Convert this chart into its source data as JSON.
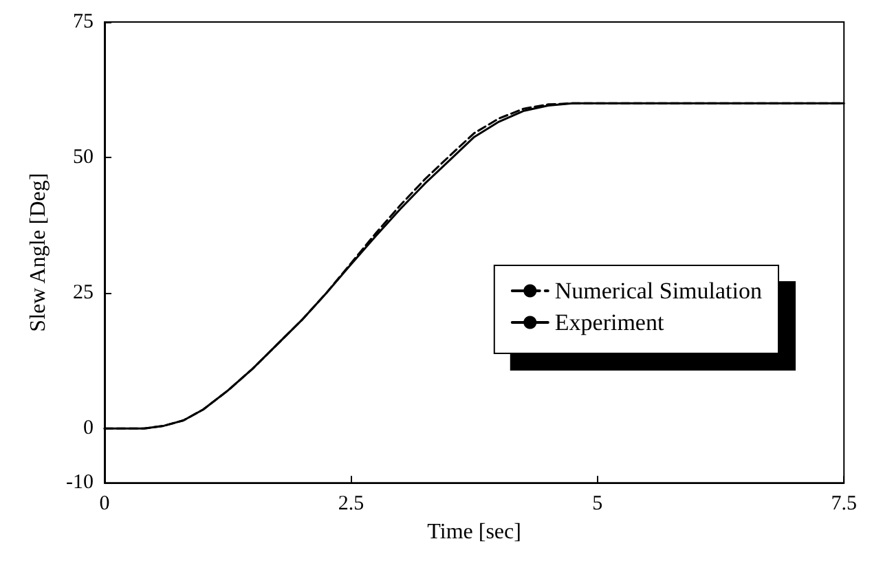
{
  "chart_data": {
    "type": "line",
    "xlabel": "Time [sec]",
    "ylabel": "Slew Angle [Deg]",
    "xlim": [
      0,
      7.5
    ],
    "xticks": [
      0,
      2.5,
      5,
      7.5
    ],
    "ylim": [
      -10,
      75
    ],
    "yticks": [
      -10,
      0,
      25,
      50,
      75
    ],
    "grid": false,
    "legend": "right",
    "marker": "none",
    "series": [
      {
        "name": "Numerical Simulation",
        "color": "#000000",
        "line_style": "dashed",
        "x": [
          0,
          0.4,
          0.6,
          0.8,
          1.0,
          1.25,
          1.5,
          1.75,
          2.0,
          2.25,
          2.5,
          2.75,
          3.0,
          3.25,
          3.5,
          3.75,
          4.0,
          4.25,
          4.5,
          4.75,
          5.0,
          5.5,
          6.0,
          6.5,
          7.0,
          7.5
        ],
        "values": [
          0,
          0,
          0.5,
          1.5,
          3.5,
          7,
          11,
          15.5,
          20,
          25,
          30.5,
          36,
          41.2,
          46,
          50.3,
          54.5,
          57.2,
          59,
          59.8,
          60,
          60,
          60,
          60,
          60,
          60,
          60
        ]
      },
      {
        "name": "Experiment",
        "color": "#000000",
        "line_style": "solid",
        "x": [
          0,
          0.4,
          0.6,
          0.8,
          1.0,
          1.25,
          1.5,
          1.75,
          2.0,
          2.25,
          2.5,
          2.75,
          3.0,
          3.25,
          3.5,
          3.75,
          4.0,
          4.25,
          4.5,
          4.75,
          5.0,
          5.5,
          6.0,
          6.5,
          7.0,
          7.5
        ],
        "values": [
          0,
          0,
          0.5,
          1.5,
          3.5,
          7,
          11,
          15.5,
          20,
          25,
          30.3,
          35.5,
          40.5,
          45.2,
          49.5,
          53.8,
          56.6,
          58.6,
          59.6,
          60,
          60,
          60,
          60,
          60,
          60,
          60
        ]
      }
    ]
  }
}
